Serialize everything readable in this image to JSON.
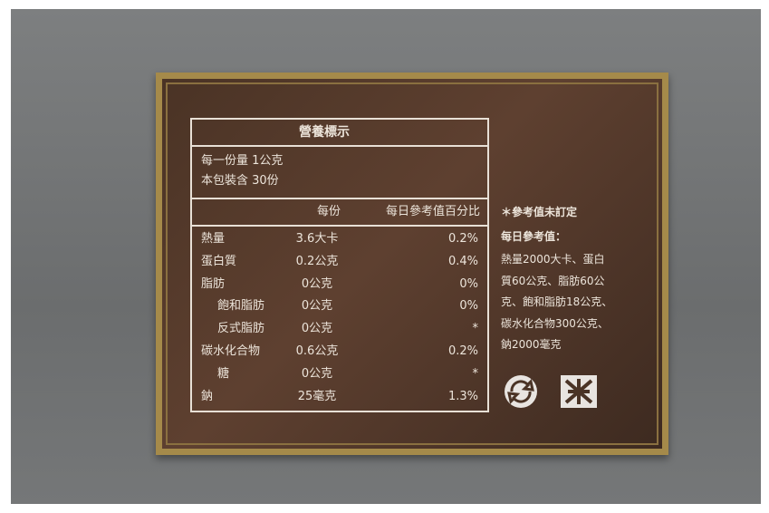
{
  "label": {
    "title": "營養標示",
    "serving": [
      "每一份量 1公克",
      "本包裝含 30份"
    ],
    "header": [
      "每份",
      "每日參考值百分比"
    ],
    "rows": [
      [
        "熱量",
        "3.6大卡",
        "0.2%"
      ],
      [
        "蛋白質",
        "0.2公克",
        "0.4%"
      ],
      [
        "脂肪",
        "0公克",
        "0%"
      ],
      [
        "飽和脂肪",
        "0公克",
        "0%"
      ],
      [
        "反式脂肪",
        "0公克",
        "*"
      ],
      [
        "碳水化合物",
        "0.6公克",
        "0.2%"
      ],
      [
        "糖",
        "0公克",
        "*"
      ],
      [
        "鈉",
        "25毫克",
        "1.3%"
      ]
    ]
  },
  "notes": {
    "undefined": "＊參考值未訂定",
    "reference_title": "每日參考值：",
    "reference_lines": [
      "熱量2000大卡、蛋白",
      "質60公克、脂肪60公",
      "克、飽和脂肪18公克、",
      "碳水化合物300公克、",
      "鈉2000毫克"
    ]
  }
}
